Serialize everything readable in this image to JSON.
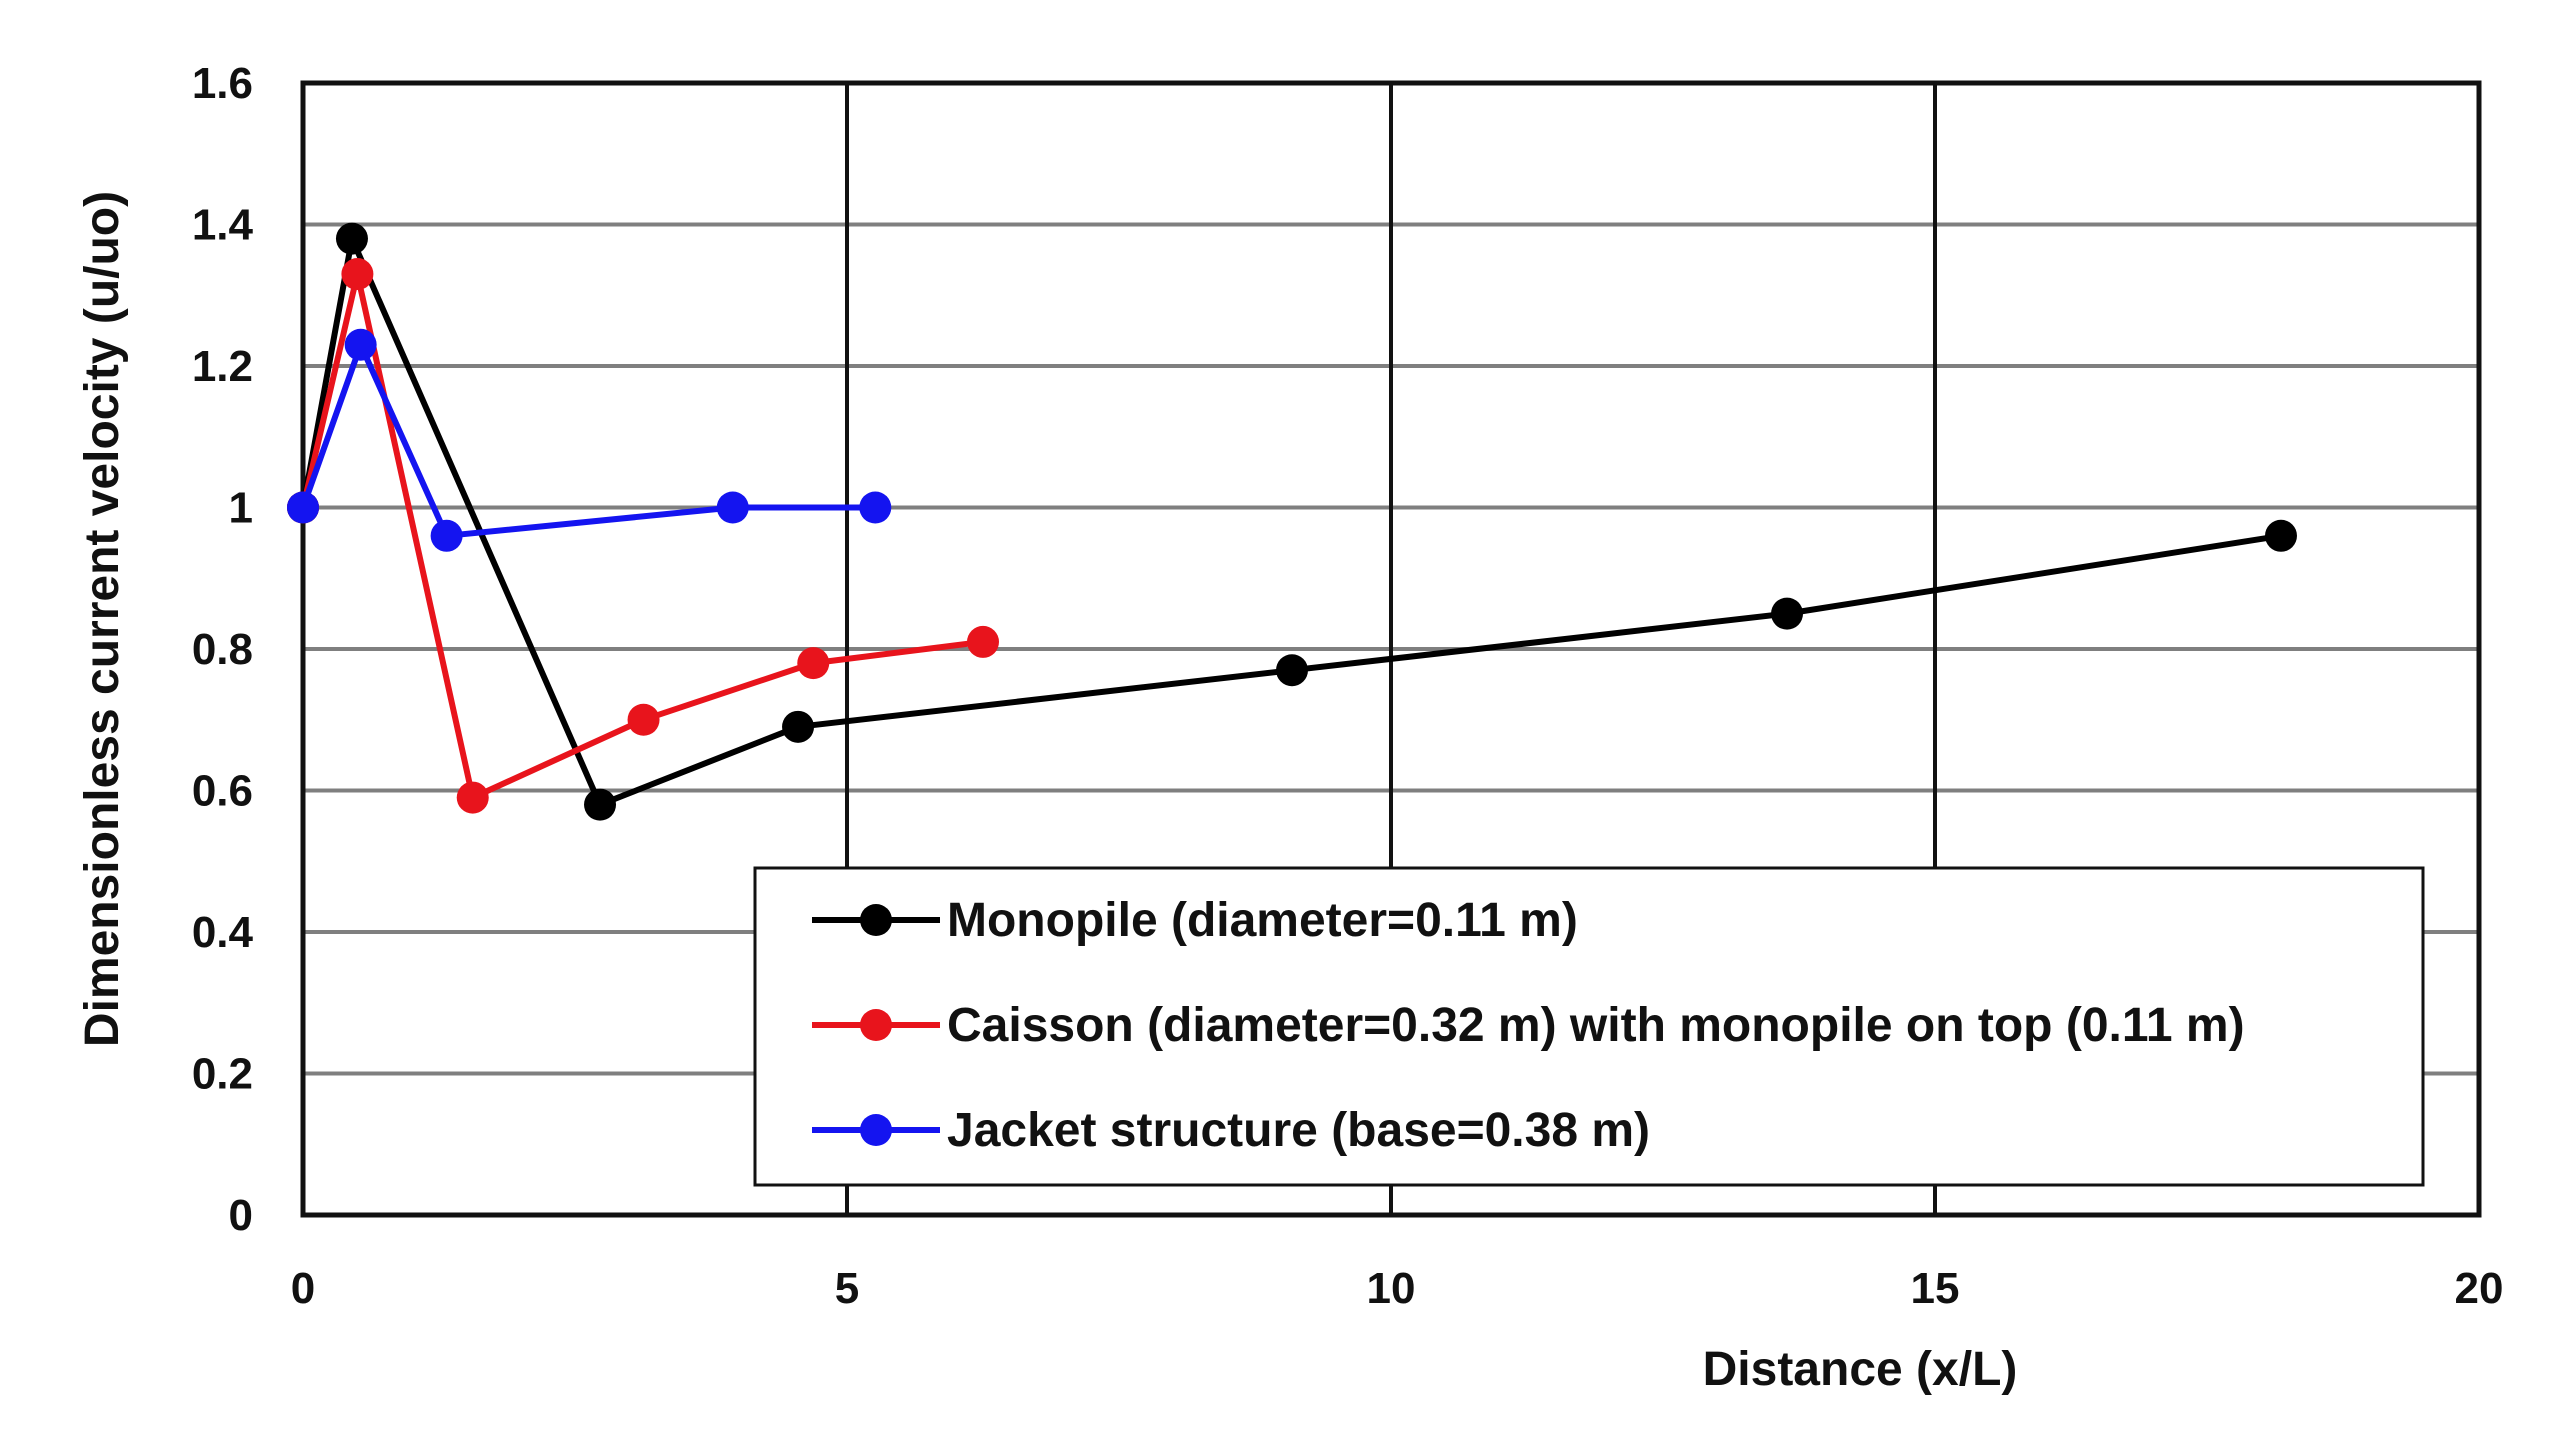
{
  "chart_data": {
    "type": "line",
    "title": "",
    "xlabel": "Distance (x/L)",
    "ylabel": "Dimensionless current velocity (u/uo)",
    "xlim": [
      0,
      20
    ],
    "ylim": [
      0,
      1.6
    ],
    "xticks": [
      0,
      5,
      10,
      15,
      20
    ],
    "xtick_labels": [
      "0",
      "5",
      "10",
      "15",
      "20"
    ],
    "yticks": [
      0,
      0.2,
      0.4,
      0.6,
      0.8,
      1.0,
      1.2,
      1.4,
      1.6
    ],
    "ytick_labels": [
      "0",
      "0.2",
      "0.4",
      "0.6",
      "0.8",
      "1",
      "1.2",
      "1.4",
      "1.6"
    ],
    "grid": true,
    "legend_position": "bottom-right",
    "series": [
      {
        "name": "Monopile (diameter=0.11 m)",
        "color": "#000000",
        "x": [
          0,
          0.45,
          2.73,
          4.55,
          9.09,
          13.64,
          18.18
        ],
        "y": [
          1.0,
          1.38,
          0.58,
          0.69,
          0.77,
          0.85,
          0.96
        ]
      },
      {
        "name": "Caisson (diameter=0.32 m) with monopile on top (0.11 m)",
        "color": "#e8141c",
        "x": [
          0,
          0.5,
          1.56,
          3.13,
          4.69,
          6.25
        ],
        "y": [
          1.0,
          1.33,
          0.59,
          0.7,
          0.78,
          0.81
        ]
      },
      {
        "name": "Jacket structure (base=0.38 m)",
        "color": "#1414f0",
        "x": [
          0,
          0.53,
          1.32,
          3.95,
          5.26
        ],
        "y": [
          1.0,
          1.23,
          0.96,
          1.0,
          1.0
        ]
      }
    ]
  }
}
